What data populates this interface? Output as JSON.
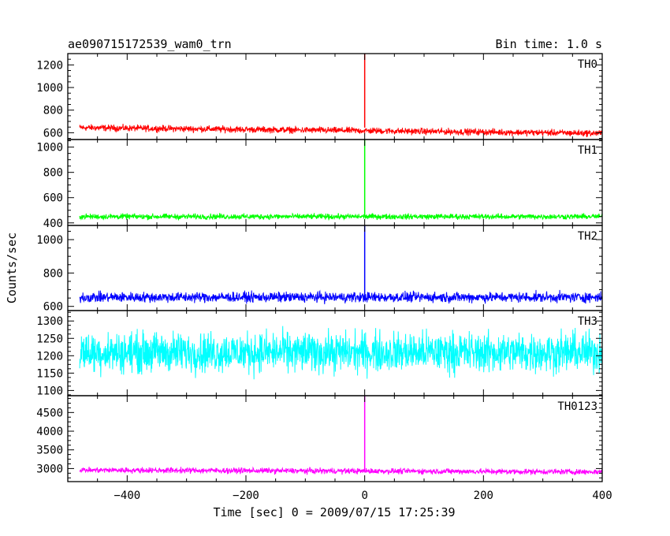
{
  "chart_data": {
    "type": "line",
    "title_left": "ae090715172539_wam0_trn",
    "title_right": "Bin time: 1.0 s",
    "xlabel": "Time [sec] 0 = 2009/07/15 17:25:39",
    "ylabel": "Counts/sec",
    "xlim": [
      -500,
      400
    ],
    "x_range": [
      -500,
      400
    ],
    "x_ticks": [
      -400,
      -200,
      0,
      200,
      400
    ],
    "x_tick_labels": [
      "−400",
      "−200",
      "0",
      "200",
      "400"
    ],
    "series": [
      {
        "name": "TH0",
        "color": "#ff0000",
        "ylim": [
          540,
          1300
        ],
        "y_ticks": [
          600,
          800,
          1000,
          1200
        ],
        "y_tick_labels": [
          "600",
          "800",
          "1000",
          "1200"
        ],
        "baseline_start": 645,
        "baseline_end": 595,
        "noise_amplitude": 42,
        "spike_peak": 1300
      },
      {
        "name": "TH1",
        "color": "#00ff00",
        "ylim": [
          380,
          1060
        ],
        "y_ticks": [
          400,
          600,
          800,
          1000
        ],
        "y_tick_labels": [
          "400",
          "600",
          "800",
          "1000"
        ],
        "baseline_start": 450,
        "baseline_end": 450,
        "noise_amplitude": 32,
        "spike_peak": 1060
      },
      {
        "name": "TH2",
        "color": "#0000ff",
        "ylim": [
          575,
          1085
        ],
        "y_ticks": [
          600,
          800,
          1000
        ],
        "y_tick_labels": [
          "600",
          "800",
          "1000"
        ],
        "baseline_start": 655,
        "baseline_end": 655,
        "noise_amplitude": 45,
        "spike_peak": 1085
      },
      {
        "name": "TH3",
        "color": "#00ffff",
        "ylim": [
          1085,
          1330
        ],
        "y_ticks": [
          1100,
          1150,
          1200,
          1250,
          1300
        ],
        "y_tick_labels": [
          "1100",
          "1150",
          "1200",
          "1250",
          "1300"
        ],
        "baseline_start": 1210,
        "baseline_end": 1210,
        "noise_amplitude": 85,
        "spike_peak": 1210
      },
      {
        "name": "TH0123",
        "color": "#ff00ff",
        "ylim": [
          2650,
          4950
        ],
        "y_ticks": [
          3000,
          3500,
          4000,
          4500
        ],
        "y_tick_labels": [
          "3000",
          "3500",
          "4000",
          "4500"
        ],
        "baseline_start": 2960,
        "baseline_end": 2910,
        "noise_amplitude": 110,
        "spike_peak": 4950
      }
    ]
  }
}
